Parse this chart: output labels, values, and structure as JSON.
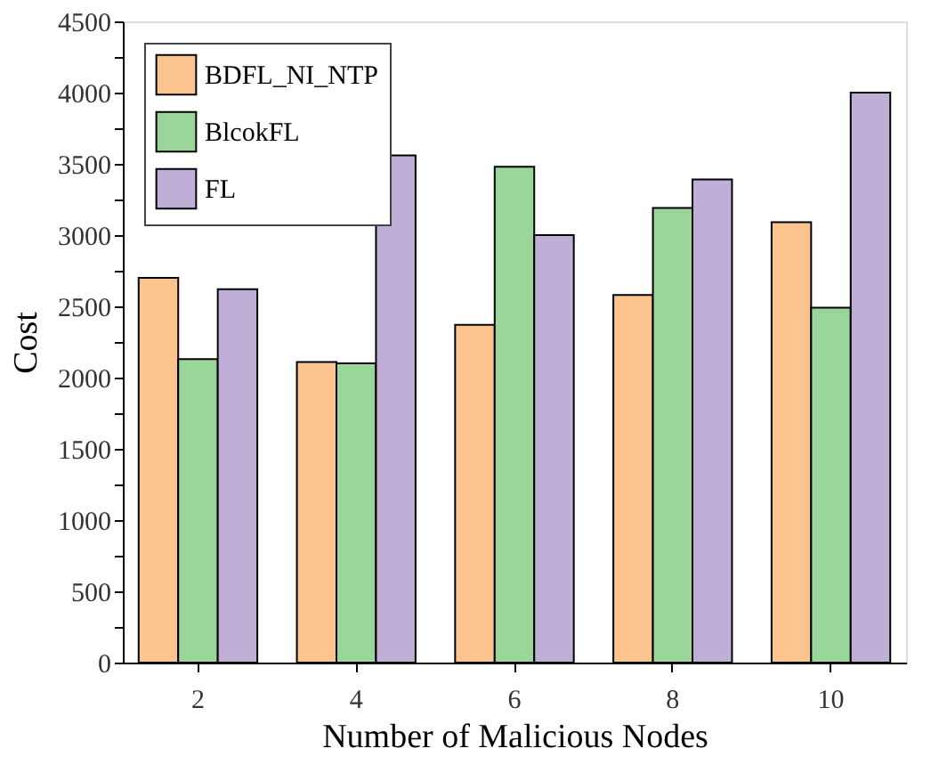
{
  "chart_data": {
    "type": "bar",
    "xlabel": "Number of Malicious Nodes",
    "ylabel": "Cost",
    "categories": [
      "2",
      "4",
      "6",
      "8",
      "10"
    ],
    "series": [
      {
        "name": "BDFL_NI_NTP",
        "color": "#fbc48f",
        "values": [
          2700,
          2110,
          2370,
          2580,
          3090
        ]
      },
      {
        "name": "BlcokFL",
        "color": "#9ad69a",
        "values": [
          2130,
          2100,
          3480,
          3190,
          2490
        ]
      },
      {
        "name": "FL",
        "color": "#bfaed6",
        "values": [
          2620,
          3560,
          3000,
          3390,
          4000
        ]
      }
    ],
    "ylim": [
      0,
      4500
    ],
    "yticks": [
      0,
      {
        "value": 250,
        "label": null
      },
      500,
      {
        "value": 750,
        "label": null
      },
      1000,
      {
        "value": 1250,
        "label": null
      },
      1500,
      {
        "value": 1750,
        "label": null
      },
      2000,
      {
        "value": 2250,
        "label": null
      },
      2500,
      {
        "value": 2750,
        "label": null
      },
      3000,
      {
        "value": 3250,
        "label": null
      },
      3500,
      {
        "value": 3750,
        "label": null
      },
      4000,
      {
        "value": 4250,
        "label": null
      },
      4500
    ],
    "grid": false,
    "legend": "top left"
  }
}
